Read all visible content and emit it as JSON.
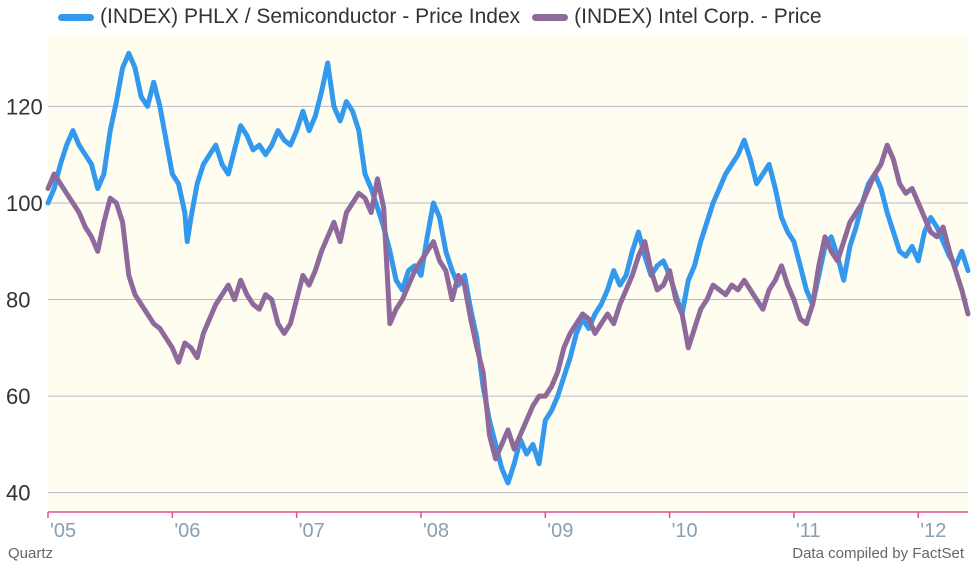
{
  "legend": {
    "items": [
      {
        "label": "(INDEX) PHLX / Semiconductor - Price Index",
        "color": "#3399ee"
      },
      {
        "label": "(INDEX) Intel Corp. - Price",
        "color": "#8e6a9c"
      }
    ]
  },
  "footer": {
    "source_left": "Quartz",
    "source_right": "Data compiled by FactSet"
  },
  "colors": {
    "plot_background": "#fffdf0",
    "gridline": "#b8b8c8",
    "baseline": "#e05090",
    "tick_label_y": "#333333",
    "tick_label_x": "#8a9fb0"
  },
  "chart_data": {
    "type": "line",
    "title": "",
    "xlabel": "",
    "ylabel": "",
    "xlim": [
      2005.0,
      2012.4
    ],
    "ylim": [
      36,
      135
    ],
    "grid": true,
    "legend_position": "top",
    "x_ticks": [
      {
        "value": 2005,
        "label": "'05"
      },
      {
        "value": 2006,
        "label": "'06"
      },
      {
        "value": 2007,
        "label": "'07"
      },
      {
        "value": 2008,
        "label": "'08"
      },
      {
        "value": 2009,
        "label": "'09"
      },
      {
        "value": 2010,
        "label": "'10"
      },
      {
        "value": 2011,
        "label": "'11"
      },
      {
        "value": 2012,
        "label": "'12"
      }
    ],
    "y_ticks": [
      40,
      60,
      80,
      100,
      120
    ],
    "series": [
      {
        "name": "(INDEX) PHLX / Semiconductor - Price Index",
        "color": "#3399ee",
        "points": [
          [
            2005.0,
            100
          ],
          [
            2005.05,
            103
          ],
          [
            2005.1,
            108
          ],
          [
            2005.15,
            112
          ],
          [
            2005.2,
            115
          ],
          [
            2005.25,
            112
          ],
          [
            2005.3,
            110
          ],
          [
            2005.35,
            108
          ],
          [
            2005.4,
            103
          ],
          [
            2005.45,
            106
          ],
          [
            2005.5,
            115
          ],
          [
            2005.55,
            121
          ],
          [
            2005.6,
            128
          ],
          [
            2005.65,
            131
          ],
          [
            2005.7,
            128
          ],
          [
            2005.75,
            122
          ],
          [
            2005.8,
            120
          ],
          [
            2005.85,
            125
          ],
          [
            2005.9,
            120
          ],
          [
            2005.95,
            113
          ],
          [
            2006.0,
            106
          ],
          [
            2006.05,
            104
          ],
          [
            2006.1,
            98
          ],
          [
            2006.12,
            92
          ],
          [
            2006.15,
            97
          ],
          [
            2006.2,
            104
          ],
          [
            2006.25,
            108
          ],
          [
            2006.3,
            110
          ],
          [
            2006.35,
            112
          ],
          [
            2006.4,
            108
          ],
          [
            2006.45,
            106
          ],
          [
            2006.5,
            111
          ],
          [
            2006.55,
            116
          ],
          [
            2006.6,
            114
          ],
          [
            2006.65,
            111
          ],
          [
            2006.7,
            112
          ],
          [
            2006.75,
            110
          ],
          [
            2006.8,
            112
          ],
          [
            2006.85,
            115
          ],
          [
            2006.9,
            113
          ],
          [
            2006.95,
            112
          ],
          [
            2007.0,
            115
          ],
          [
            2007.05,
            119
          ],
          [
            2007.1,
            115
          ],
          [
            2007.15,
            118
          ],
          [
            2007.2,
            123
          ],
          [
            2007.25,
            129
          ],
          [
            2007.3,
            120
          ],
          [
            2007.35,
            117
          ],
          [
            2007.4,
            121
          ],
          [
            2007.45,
            119
          ],
          [
            2007.5,
            115
          ],
          [
            2007.55,
            106
          ],
          [
            2007.6,
            103
          ],
          [
            2007.65,
            99
          ],
          [
            2007.7,
            95
          ],
          [
            2007.75,
            90
          ],
          [
            2007.8,
            84
          ],
          [
            2007.85,
            82
          ],
          [
            2007.9,
            86
          ],
          [
            2007.95,
            87
          ],
          [
            2008.0,
            85
          ],
          [
            2008.05,
            93
          ],
          [
            2008.1,
            100
          ],
          [
            2008.15,
            97
          ],
          [
            2008.2,
            90
          ],
          [
            2008.25,
            86
          ],
          [
            2008.3,
            83
          ],
          [
            2008.35,
            85
          ],
          [
            2008.4,
            78
          ],
          [
            2008.45,
            72
          ],
          [
            2008.5,
            62
          ],
          [
            2008.55,
            55
          ],
          [
            2008.6,
            50
          ],
          [
            2008.65,
            45
          ],
          [
            2008.7,
            42
          ],
          [
            2008.75,
            46
          ],
          [
            2008.8,
            51
          ],
          [
            2008.85,
            48
          ],
          [
            2008.9,
            50
          ],
          [
            2008.95,
            46
          ],
          [
            2009.0,
            55
          ],
          [
            2009.05,
            57
          ],
          [
            2009.1,
            60
          ],
          [
            2009.15,
            64
          ],
          [
            2009.2,
            68
          ],
          [
            2009.25,
            73
          ],
          [
            2009.3,
            76
          ],
          [
            2009.35,
            74
          ],
          [
            2009.4,
            77
          ],
          [
            2009.45,
            79
          ],
          [
            2009.5,
            82
          ],
          [
            2009.55,
            86
          ],
          [
            2009.6,
            83
          ],
          [
            2009.65,
            85
          ],
          [
            2009.7,
            90
          ],
          [
            2009.75,
            94
          ],
          [
            2009.8,
            89
          ],
          [
            2009.85,
            85
          ],
          [
            2009.9,
            87
          ],
          [
            2009.95,
            88
          ],
          [
            2010.0,
            85
          ],
          [
            2010.05,
            81
          ],
          [
            2010.1,
            77
          ],
          [
            2010.15,
            84
          ],
          [
            2010.2,
            87
          ],
          [
            2010.25,
            92
          ],
          [
            2010.3,
            96
          ],
          [
            2010.35,
            100
          ],
          [
            2010.4,
            103
          ],
          [
            2010.45,
            106
          ],
          [
            2010.5,
            108
          ],
          [
            2010.55,
            110
          ],
          [
            2010.6,
            113
          ],
          [
            2010.65,
            109
          ],
          [
            2010.7,
            104
          ],
          [
            2010.75,
            106
          ],
          [
            2010.8,
            108
          ],
          [
            2010.85,
            103
          ],
          [
            2010.9,
            97
          ],
          [
            2010.95,
            94
          ],
          [
            2011.0,
            92
          ],
          [
            2011.05,
            87
          ],
          [
            2011.1,
            82
          ],
          [
            2011.15,
            79
          ],
          [
            2011.2,
            85
          ],
          [
            2011.25,
            91
          ],
          [
            2011.3,
            93
          ],
          [
            2011.35,
            89
          ],
          [
            2011.4,
            84
          ],
          [
            2011.45,
            91
          ],
          [
            2011.5,
            95
          ],
          [
            2011.55,
            100
          ],
          [
            2011.6,
            104
          ],
          [
            2011.65,
            106
          ],
          [
            2011.7,
            103
          ],
          [
            2011.75,
            98
          ],
          [
            2011.8,
            94
          ],
          [
            2011.85,
            90
          ],
          [
            2011.9,
            89
          ],
          [
            2011.95,
            91
          ],
          [
            2012.0,
            88
          ],
          [
            2012.05,
            94
          ],
          [
            2012.1,
            97
          ],
          [
            2012.15,
            95
          ],
          [
            2012.2,
            92
          ],
          [
            2012.25,
            89
          ],
          [
            2012.3,
            87
          ],
          [
            2012.35,
            90
          ],
          [
            2012.4,
            86
          ]
        ]
      },
      {
        "name": "(INDEX) Intel Corp. - Price",
        "color": "#8e6a9c",
        "points": [
          [
            2005.0,
            103
          ],
          [
            2005.05,
            106
          ],
          [
            2005.1,
            104
          ],
          [
            2005.15,
            102
          ],
          [
            2005.2,
            100
          ],
          [
            2005.25,
            98
          ],
          [
            2005.3,
            95
          ],
          [
            2005.35,
            93
          ],
          [
            2005.4,
            90
          ],
          [
            2005.45,
            96
          ],
          [
            2005.5,
            101
          ],
          [
            2005.55,
            100
          ],
          [
            2005.6,
            96
          ],
          [
            2005.65,
            85
          ],
          [
            2005.7,
            81
          ],
          [
            2005.75,
            79
          ],
          [
            2005.8,
            77
          ],
          [
            2005.85,
            75
          ],
          [
            2005.9,
            74
          ],
          [
            2005.95,
            72
          ],
          [
            2006.0,
            70
          ],
          [
            2006.05,
            67
          ],
          [
            2006.1,
            71
          ],
          [
            2006.15,
            70
          ],
          [
            2006.2,
            68
          ],
          [
            2006.25,
            73
          ],
          [
            2006.3,
            76
          ],
          [
            2006.35,
            79
          ],
          [
            2006.4,
            81
          ],
          [
            2006.45,
            83
          ],
          [
            2006.5,
            80
          ],
          [
            2006.55,
            84
          ],
          [
            2006.6,
            81
          ],
          [
            2006.65,
            79
          ],
          [
            2006.7,
            78
          ],
          [
            2006.75,
            81
          ],
          [
            2006.8,
            80
          ],
          [
            2006.85,
            75
          ],
          [
            2006.9,
            73
          ],
          [
            2006.95,
            75
          ],
          [
            2007.0,
            80
          ],
          [
            2007.05,
            85
          ],
          [
            2007.1,
            83
          ],
          [
            2007.15,
            86
          ],
          [
            2007.2,
            90
          ],
          [
            2007.25,
            93
          ],
          [
            2007.3,
            96
          ],
          [
            2007.35,
            92
          ],
          [
            2007.4,
            98
          ],
          [
            2007.45,
            100
          ],
          [
            2007.5,
            102
          ],
          [
            2007.55,
            101
          ],
          [
            2007.6,
            98
          ],
          [
            2007.65,
            105
          ],
          [
            2007.7,
            99
          ],
          [
            2007.75,
            75
          ],
          [
            2007.8,
            78
          ],
          [
            2007.85,
            80
          ],
          [
            2007.9,
            83
          ],
          [
            2007.95,
            86
          ],
          [
            2008.0,
            88
          ],
          [
            2008.05,
            90
          ],
          [
            2008.1,
            92
          ],
          [
            2008.15,
            88
          ],
          [
            2008.2,
            86
          ],
          [
            2008.25,
            80
          ],
          [
            2008.3,
            85
          ],
          [
            2008.35,
            83
          ],
          [
            2008.4,
            76
          ],
          [
            2008.45,
            70
          ],
          [
            2008.5,
            65
          ],
          [
            2008.55,
            52
          ],
          [
            2008.6,
            47
          ],
          [
            2008.65,
            50
          ],
          [
            2008.7,
            53
          ],
          [
            2008.75,
            49
          ],
          [
            2008.8,
            52
          ],
          [
            2008.85,
            55
          ],
          [
            2008.9,
            58
          ],
          [
            2008.95,
            60
          ],
          [
            2009.0,
            60
          ],
          [
            2009.05,
            62
          ],
          [
            2009.1,
            65
          ],
          [
            2009.15,
            70
          ],
          [
            2009.2,
            73
          ],
          [
            2009.25,
            75
          ],
          [
            2009.3,
            77
          ],
          [
            2009.35,
            76
          ],
          [
            2009.4,
            73
          ],
          [
            2009.45,
            75
          ],
          [
            2009.5,
            77
          ],
          [
            2009.55,
            75
          ],
          [
            2009.6,
            79
          ],
          [
            2009.65,
            82
          ],
          [
            2009.7,
            85
          ],
          [
            2009.75,
            89
          ],
          [
            2009.8,
            92
          ],
          [
            2009.85,
            86
          ],
          [
            2009.9,
            82
          ],
          [
            2009.95,
            83
          ],
          [
            2010.0,
            86
          ],
          [
            2010.05,
            80
          ],
          [
            2010.1,
            77
          ],
          [
            2010.15,
            70
          ],
          [
            2010.2,
            74
          ],
          [
            2010.25,
            78
          ],
          [
            2010.3,
            80
          ],
          [
            2010.35,
            83
          ],
          [
            2010.4,
            82
          ],
          [
            2010.45,
            81
          ],
          [
            2010.5,
            83
          ],
          [
            2010.55,
            82
          ],
          [
            2010.6,
            84
          ],
          [
            2010.65,
            82
          ],
          [
            2010.7,
            80
          ],
          [
            2010.75,
            78
          ],
          [
            2010.8,
            82
          ],
          [
            2010.85,
            84
          ],
          [
            2010.9,
            87
          ],
          [
            2010.95,
            83
          ],
          [
            2011.0,
            80
          ],
          [
            2011.05,
            76
          ],
          [
            2011.1,
            75
          ],
          [
            2011.15,
            79
          ],
          [
            2011.2,
            87
          ],
          [
            2011.25,
            93
          ],
          [
            2011.3,
            90
          ],
          [
            2011.35,
            88
          ],
          [
            2011.4,
            92
          ],
          [
            2011.45,
            96
          ],
          [
            2011.5,
            98
          ],
          [
            2011.55,
            100
          ],
          [
            2011.6,
            103
          ],
          [
            2011.65,
            106
          ],
          [
            2011.7,
            108
          ],
          [
            2011.75,
            112
          ],
          [
            2011.8,
            109
          ],
          [
            2011.85,
            104
          ],
          [
            2011.9,
            102
          ],
          [
            2011.95,
            103
          ],
          [
            2012.0,
            100
          ],
          [
            2012.05,
            97
          ],
          [
            2012.1,
            94
          ],
          [
            2012.15,
            93
          ],
          [
            2012.2,
            95
          ],
          [
            2012.25,
            90
          ],
          [
            2012.3,
            86
          ],
          [
            2012.35,
            82
          ],
          [
            2012.4,
            77
          ]
        ]
      }
    ]
  }
}
